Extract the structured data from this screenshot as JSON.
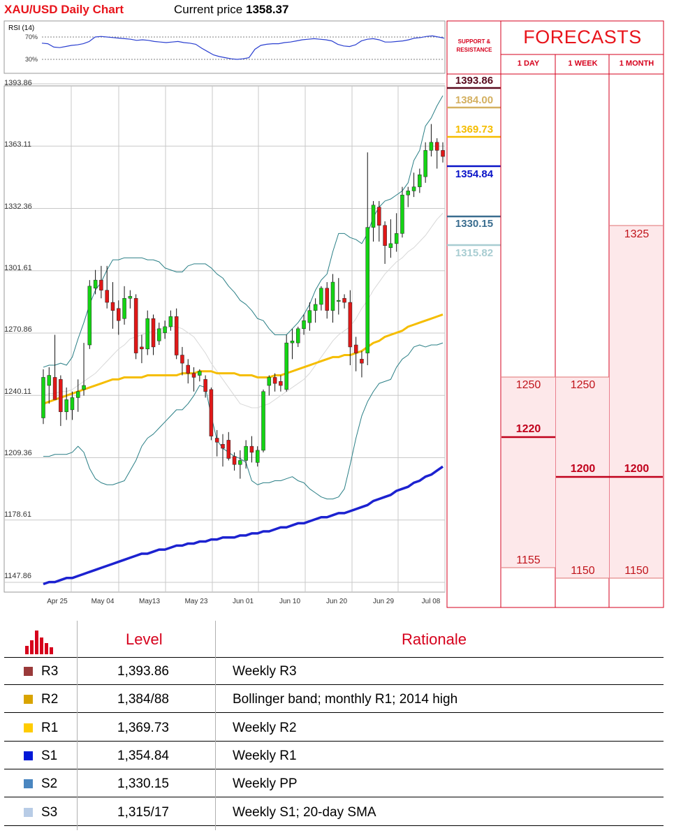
{
  "header": {
    "title": "XAU/USD Daily Chart",
    "price_label": "Current price",
    "price_value": "1358.37"
  },
  "rsi": {
    "label": "RSI (14)",
    "levels": [
      "70%",
      "30%"
    ],
    "values": [
      59,
      58,
      52,
      51,
      53,
      55,
      56,
      58,
      62,
      70,
      71,
      70,
      69,
      68,
      67,
      66,
      64,
      65,
      64,
      62,
      61,
      60,
      61,
      62,
      60,
      59,
      57,
      50,
      44,
      38,
      35,
      33,
      31,
      30,
      31,
      33,
      48,
      55,
      57,
      58,
      58,
      60,
      61,
      63,
      65,
      66,
      67,
      66,
      65,
      63,
      57,
      54,
      53,
      56,
      63,
      66,
      67,
      65,
      61,
      61,
      62,
      63,
      65,
      68,
      69,
      71,
      72,
      70,
      68
    ]
  },
  "chart_data": {
    "type": "candlestick",
    "title": "XAU/USD Daily Chart",
    "y_ticks": [
      "1393.86",
      "1363.11",
      "1332.36",
      "1301.61",
      "1270.86",
      "1240.11",
      "1209.36",
      "1178.61",
      "1147.86"
    ],
    "y_range": [
      1147.86,
      1393.86
    ],
    "x_ticks": [
      "Apr 25",
      "May 04",
      "May13",
      "May 23",
      "Jun 01",
      "Jun 10",
      "Jun 20",
      "Jun 29",
      "Jul 08"
    ],
    "candles": [
      {
        "o": 1229,
        "h": 1253,
        "l": 1226,
        "c": 1249
      },
      {
        "o": 1245,
        "h": 1254,
        "l": 1236,
        "c": 1250
      },
      {
        "o": 1249,
        "h": 1270,
        "l": 1238,
        "c": 1238
      },
      {
        "o": 1248,
        "h": 1250,
        "l": 1225,
        "c": 1232
      },
      {
        "o": 1232,
        "h": 1244,
        "l": 1228,
        "c": 1238
      },
      {
        "o": 1233,
        "h": 1242,
        "l": 1228,
        "c": 1239
      },
      {
        "o": 1239,
        "h": 1248,
        "l": 1232,
        "c": 1242
      },
      {
        "o": 1243,
        "h": 1266,
        "l": 1240,
        "c": 1245
      },
      {
        "o": 1265,
        "h": 1297,
        "l": 1263,
        "c": 1294
      },
      {
        "o": 1293,
        "h": 1302,
        "l": 1290,
        "c": 1297
      },
      {
        "o": 1297,
        "h": 1304,
        "l": 1288,
        "c": 1292
      },
      {
        "o": 1292,
        "h": 1304,
        "l": 1283,
        "c": 1286
      },
      {
        "o": 1286,
        "h": 1296,
        "l": 1273,
        "c": 1282
      },
      {
        "o": 1283,
        "h": 1287,
        "l": 1270,
        "c": 1277
      },
      {
        "o": 1278,
        "h": 1294,
        "l": 1275,
        "c": 1288
      },
      {
        "o": 1288,
        "h": 1292,
        "l": 1283,
        "c": 1289
      },
      {
        "o": 1288,
        "h": 1290,
        "l": 1258,
        "c": 1261
      },
      {
        "o": 1264,
        "h": 1270,
        "l": 1256,
        "c": 1263
      },
      {
        "o": 1263,
        "h": 1282,
        "l": 1260,
        "c": 1278
      },
      {
        "o": 1278,
        "h": 1280,
        "l": 1260,
        "c": 1264
      },
      {
        "o": 1267,
        "h": 1276,
        "l": 1265,
        "c": 1273
      },
      {
        "o": 1271,
        "h": 1277,
        "l": 1268,
        "c": 1274
      },
      {
        "o": 1274,
        "h": 1282,
        "l": 1272,
        "c": 1279
      },
      {
        "o": 1279,
        "h": 1283,
        "l": 1258,
        "c": 1260
      },
      {
        "o": 1260,
        "h": 1264,
        "l": 1250,
        "c": 1256
      },
      {
        "o": 1255,
        "h": 1258,
        "l": 1246,
        "c": 1251
      },
      {
        "o": 1251,
        "h": 1254,
        "l": 1242,
        "c": 1249
      },
      {
        "o": 1250,
        "h": 1253,
        "l": 1247,
        "c": 1252
      },
      {
        "o": 1248,
        "h": 1250,
        "l": 1239,
        "c": 1242
      },
      {
        "o": 1243,
        "h": 1244,
        "l": 1218,
        "c": 1220
      },
      {
        "o": 1219,
        "h": 1223,
        "l": 1210,
        "c": 1217
      },
      {
        "o": 1216,
        "h": 1221,
        "l": 1205,
        "c": 1214
      },
      {
        "o": 1218,
        "h": 1222,
        "l": 1208,
        "c": 1209
      },
      {
        "o": 1210,
        "h": 1212,
        "l": 1203,
        "c": 1206
      },
      {
        "o": 1206,
        "h": 1213,
        "l": 1199,
        "c": 1208
      },
      {
        "o": 1208,
        "h": 1218,
        "l": 1204,
        "c": 1215
      },
      {
        "o": 1215,
        "h": 1220,
        "l": 1207,
        "c": 1212
      },
      {
        "o": 1207,
        "h": 1215,
        "l": 1205,
        "c": 1213
      },
      {
        "o": 1213,
        "h": 1243,
        "l": 1212,
        "c": 1242
      },
      {
        "o": 1245,
        "h": 1250,
        "l": 1240,
        "c": 1249
      },
      {
        "o": 1249,
        "h": 1251,
        "l": 1242,
        "c": 1246
      },
      {
        "o": 1247,
        "h": 1250,
        "l": 1242,
        "c": 1245
      },
      {
        "o": 1243,
        "h": 1270,
        "l": 1242,
        "c": 1266
      },
      {
        "o": 1266,
        "h": 1273,
        "l": 1258,
        "c": 1267
      },
      {
        "o": 1266,
        "h": 1274,
        "l": 1264,
        "c": 1273
      },
      {
        "o": 1273,
        "h": 1280,
        "l": 1270,
        "c": 1277
      },
      {
        "o": 1276,
        "h": 1286,
        "l": 1272,
        "c": 1282
      },
      {
        "o": 1282,
        "h": 1288,
        "l": 1276,
        "c": 1285
      },
      {
        "o": 1285,
        "h": 1294,
        "l": 1282,
        "c": 1293
      },
      {
        "o": 1293,
        "h": 1296,
        "l": 1278,
        "c": 1282
      },
      {
        "o": 1282,
        "h": 1300,
        "l": 1276,
        "c": 1296
      },
      {
        "o": 1287,
        "h": 1298,
        "l": 1280,
        "c": 1287
      },
      {
        "o": 1288,
        "h": 1290,
        "l": 1283,
        "c": 1286
      },
      {
        "o": 1286,
        "h": 1292,
        "l": 1255,
        "c": 1264
      },
      {
        "o": 1265,
        "h": 1269,
        "l": 1252,
        "c": 1261
      },
      {
        "o": 1258,
        "h": 1262,
        "l": 1249,
        "c": 1256
      },
      {
        "o": 1261,
        "h": 1360,
        "l": 1255,
        "c": 1323
      },
      {
        "o": 1323,
        "h": 1336,
        "l": 1316,
        "c": 1334
      },
      {
        "o": 1333,
        "h": 1336,
        "l": 1316,
        "c": 1324
      },
      {
        "o": 1324,
        "h": 1326,
        "l": 1305,
        "c": 1314
      },
      {
        "o": 1313,
        "h": 1327,
        "l": 1308,
        "c": 1315
      },
      {
        "o": 1315,
        "h": 1330,
        "l": 1311,
        "c": 1320
      },
      {
        "o": 1320,
        "h": 1343,
        "l": 1318,
        "c": 1339
      },
      {
        "o": 1339,
        "h": 1343,
        "l": 1333,
        "c": 1341
      },
      {
        "o": 1341,
        "h": 1350,
        "l": 1338,
        "c": 1343
      },
      {
        "o": 1343,
        "h": 1352,
        "l": 1340,
        "c": 1349
      },
      {
        "o": 1348,
        "h": 1365,
        "l": 1345,
        "c": 1361
      },
      {
        "o": 1361,
        "h": 1374,
        "l": 1358,
        "c": 1365
      },
      {
        "o": 1365,
        "h": 1367,
        "l": 1352,
        "c": 1361
      },
      {
        "o": 1361,
        "h": 1365,
        "l": 1355,
        "c": 1358
      }
    ],
    "sma_50": [
      1236,
      1237,
      1238,
      1239,
      1240,
      1241,
      1242,
      1243,
      1244,
      1245,
      1246,
      1247,
      1248,
      1248,
      1249,
      1249,
      1249,
      1249,
      1250,
      1250,
      1250,
      1250,
      1250,
      1250,
      1251,
      1251,
      1251,
      1252,
      1252,
      1252,
      1251,
      1251,
      1251,
      1251,
      1250,
      1250,
      1250,
      1249,
      1249,
      1249,
      1250,
      1250,
      1251,
      1252,
      1253,
      1254,
      1255,
      1256,
      1257,
      1258,
      1259,
      1259,
      1260,
      1260,
      1261,
      1262,
      1264,
      1266,
      1267,
      1269,
      1270,
      1271,
      1272,
      1274,
      1275,
      1276,
      1277,
      1278,
      1279,
      1280
    ],
    "sma_200": [
      1147,
      1148,
      1148,
      1149,
      1150,
      1150,
      1151,
      1152,
      1153,
      1154,
      1155,
      1156,
      1157,
      1158,
      1159,
      1160,
      1161,
      1162,
      1162,
      1163,
      1164,
      1164,
      1165,
      1166,
      1166,
      1167,
      1167,
      1168,
      1168,
      1169,
      1169,
      1170,
      1170,
      1170,
      1171,
      1171,
      1172,
      1172,
      1173,
      1173,
      1174,
      1175,
      1175,
      1176,
      1177,
      1177,
      1178,
      1179,
      1180,
      1180,
      1181,
      1182,
      1182,
      1183,
      1184,
      1185,
      1186,
      1188,
      1189,
      1190,
      1191,
      1193,
      1194,
      1195,
      1197,
      1198,
      1200,
      1201,
      1203,
      1205
    ],
    "bb_upper": [
      1254,
      1255,
      1255,
      1256,
      1255,
      1259,
      1268,
      1276,
      1285,
      1292,
      1296,
      1302,
      1307,
      1307,
      1308,
      1308,
      1308,
      1308,
      1307,
      1307,
      1306,
      1303,
      1302,
      1301,
      1301,
      1304,
      1305,
      1305,
      1305,
      1303,
      1300,
      1298,
      1294,
      1291,
      1287,
      1285,
      1282,
      1278,
      1277,
      1273,
      1270,
      1270,
      1270,
      1273,
      1276,
      1280,
      1285,
      1292,
      1297,
      1300,
      1311,
      1320,
      1320,
      1318,
      1317,
      1315,
      1320,
      1328,
      1333,
      1336,
      1337,
      1339,
      1341,
      1345,
      1356,
      1361,
      1373,
      1377,
      1383,
      1388
    ],
    "bb_mid": [
      1240,
      1241,
      1241,
      1242,
      1242,
      1243,
      1245,
      1247,
      1249,
      1251,
      1254,
      1257,
      1260,
      1263,
      1265,
      1268,
      1269,
      1270,
      1271,
      1272,
      1273,
      1273,
      1274,
      1274,
      1273,
      1271,
      1269,
      1265,
      1261,
      1256,
      1252,
      1248,
      1244,
      1240,
      1236,
      1235,
      1234,
      1234,
      1235,
      1236,
      1238,
      1240,
      1242,
      1244,
      1246,
      1248,
      1251,
      1255,
      1259,
      1263,
      1267,
      1270,
      1272,
      1274,
      1278,
      1283,
      1287,
      1292,
      1296,
      1300,
      1303,
      1306,
      1308,
      1311,
      1313,
      1316,
      1319,
      1323,
      1327,
      1330
    ],
    "bb_lower": [
      1210,
      1210,
      1211,
      1211,
      1211,
      1212,
      1215,
      1212,
      1204,
      1199,
      1197,
      1196,
      1196,
      1197,
      1198,
      1203,
      1208,
      1215,
      1219,
      1221,
      1224,
      1227,
      1230,
      1233,
      1233,
      1236,
      1240,
      1245,
      1244,
      1230,
      1218,
      1214,
      1212,
      1210,
      1209,
      1207,
      1198,
      1196,
      1197,
      1197,
      1198,
      1198,
      1199,
      1200,
      1198,
      1197,
      1194,
      1192,
      1190,
      1189,
      1189,
      1190,
      1194,
      1206,
      1219,
      1230,
      1237,
      1242,
      1246,
      1247,
      1248,
      1254,
      1258,
      1260,
      1264,
      1265,
      1264,
      1265,
      1265,
      1266
    ]
  },
  "support_resistance": {
    "heading": [
      "SUPPORT &",
      "RESISTANCE"
    ],
    "levels": [
      {
        "value": "1393.86",
        "color": "#5a0a1e"
      },
      {
        "value": "1384.00",
        "color": "#d4b060"
      },
      {
        "value": "1369.73",
        "color": "#f5bd00"
      },
      {
        "value": "1354.84",
        "color": "#0a14c8"
      },
      {
        "value": "1330.15",
        "color": "#3a6d8f"
      },
      {
        "value": "1315.82",
        "color": "#a8cdd2"
      }
    ]
  },
  "forecasts": {
    "title": "FORECASTS",
    "columns": [
      "1 DAY",
      "1 WEEK",
      "1 MONTH"
    ],
    "day": {
      "high": "1250",
      "median": "1220",
      "low": "1155"
    },
    "week": {
      "high": "1250",
      "median": "1200",
      "low": "1150"
    },
    "month": {
      "high": "1325",
      "median": "1200",
      "low": "1150"
    }
  },
  "table": {
    "headers": [
      "Level",
      "Rationale"
    ],
    "rows": [
      {
        "label": "R3",
        "level": "1,393.86",
        "rationale": "Weekly R3",
        "color": "#9a3a3a"
      },
      {
        "label": "R2",
        "level": "1,384/88",
        "rationale": "Bollinger band; monthly R1; 2014 high",
        "color": "#d9a400"
      },
      {
        "label": "R1",
        "level": "1,369.73",
        "rationale": "Weekly R2",
        "color": "#ffcc00"
      },
      {
        "label": "S1",
        "level": "1,354.84",
        "rationale": "Weekly R1",
        "color": "#0018d8"
      },
      {
        "label": "S2",
        "level": "1,330.15",
        "rationale": "Weekly PP",
        "color": "#4a86c0"
      },
      {
        "label": "S3",
        "level": "1,315/17",
        "rationale": "Weekly S1; 20-day SMA",
        "color": "#b8cce6"
      }
    ]
  }
}
